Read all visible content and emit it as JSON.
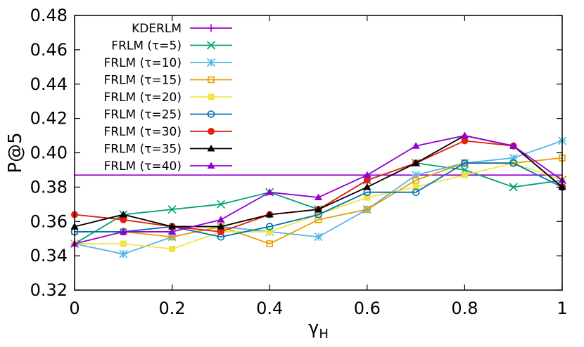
{
  "chart_data": {
    "type": "line",
    "title": "",
    "xlabel": "γ",
    "xlabel_sub": "H",
    "ylabel": "P@5",
    "xlim": [
      0,
      1
    ],
    "ylim": [
      0.32,
      0.48
    ],
    "x_ticks": [
      "0",
      "0.2",
      "0.4",
      "0.6",
      "0.8",
      "1"
    ],
    "y_ticks": [
      "0.32",
      "0.34",
      "0.36",
      "0.38",
      "0.40",
      "0.42",
      "0.44",
      "0.46",
      "0.48"
    ],
    "grid": false,
    "legend_position": "top-left",
    "x": [
      0,
      0.1,
      0.2,
      0.3,
      0.4,
      0.5,
      0.6,
      0.7,
      0.8,
      0.9,
      1.0
    ],
    "series": [
      {
        "name": "KDERLM",
        "color": "#9400d3",
        "marker": "plus",
        "constant": 0.387
      },
      {
        "name": "FRLM (τ=5)",
        "color": "#009e73",
        "marker": "cross",
        "values": [
          0.347,
          0.364,
          0.367,
          0.37,
          0.377,
          0.367,
          0.384,
          0.394,
          0.39,
          0.38,
          0.384
        ]
      },
      {
        "name": "FRLM (τ=10)",
        "color": "#56b4e9",
        "marker": "star",
        "values": [
          0.347,
          0.341,
          0.351,
          0.357,
          0.354,
          0.351,
          0.367,
          0.387,
          0.394,
          0.397,
          0.407
        ]
      },
      {
        "name": "FRLM (τ=15)",
        "color": "#e69f00",
        "marker": "square-open",
        "values": [
          0.354,
          0.354,
          0.351,
          0.357,
          0.347,
          0.361,
          0.367,
          0.384,
          0.394,
          0.394,
          0.397
        ]
      },
      {
        "name": "FRLM (τ=20)",
        "color": "#f0e442",
        "marker": "square",
        "values": [
          0.347,
          0.347,
          0.344,
          0.354,
          0.354,
          0.364,
          0.374,
          0.38,
          0.387,
          0.394,
          0.384
        ]
      },
      {
        "name": "FRLM (τ=25)",
        "color": "#0072b2",
        "marker": "circle-open",
        "values": [
          0.354,
          0.354,
          0.357,
          0.351,
          0.357,
          0.364,
          0.377,
          0.377,
          0.394,
          0.394,
          0.38
        ]
      },
      {
        "name": "FRLM (τ=30)",
        "color": "#e51e10",
        "marker": "circle",
        "values": [
          0.364,
          0.361,
          0.357,
          0.354,
          0.364,
          0.367,
          0.384,
          0.394,
          0.407,
          0.404,
          0.38
        ]
      },
      {
        "name": "FRLM (τ=35)",
        "color": "#000000",
        "marker": "triangle",
        "values": [
          0.357,
          0.364,
          0.357,
          0.357,
          0.364,
          0.367,
          0.38,
          0.394,
          0.41,
          0.404,
          0.38
        ]
      },
      {
        "name": "FRLM (τ=40)",
        "color": "#9400d3",
        "marker": "triangle",
        "values": [
          0.347,
          0.354,
          0.354,
          0.361,
          0.377,
          0.374,
          0.387,
          0.404,
          0.41,
          0.404,
          0.384
        ]
      }
    ]
  }
}
